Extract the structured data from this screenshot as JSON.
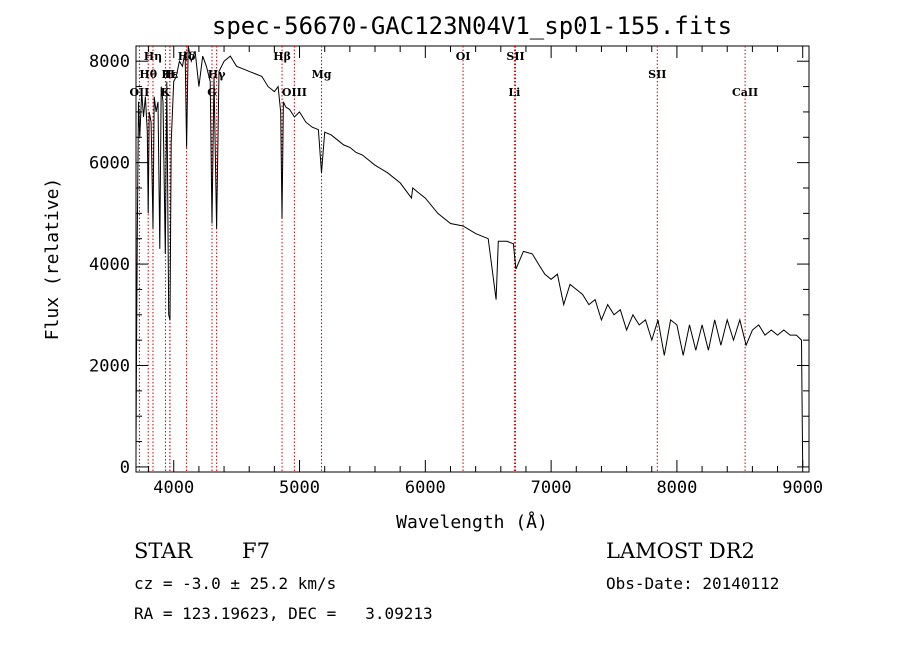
{
  "chart_data": {
    "type": "line",
    "title": "spec-56670-GAC123N04V1_sp01-155.fits",
    "xlabel": "Wavelength (Å)",
    "ylabel": "Flux (relative)",
    "xlim": [
      3700,
      9050
    ],
    "ylim": [
      -100,
      8300
    ],
    "x_ticks": [
      4000,
      5000,
      6000,
      7000,
      8000,
      9000
    ],
    "y_ticks": [
      0,
      2000,
      4000,
      6000,
      8000
    ],
    "grid": false,
    "line_color": "#000000",
    "marker_color": "#cc0000",
    "lines": [
      {
        "label": "Hη",
        "wavelength": 3835,
        "row": 0
      },
      {
        "label": "Hθ",
        "wavelength": 3797,
        "row": 1
      },
      {
        "label": "OII",
        "wavelength": 3727,
        "row": 2
      },
      {
        "label": "K",
        "wavelength": 3934,
        "row": 2
      },
      {
        "label": "H",
        "wavelength": 3969,
        "row": 1
      },
      {
        "label": "Hε",
        "wavelength": 3970,
        "row": 1
      },
      {
        "label": "Hδ",
        "wavelength": 4102,
        "row": 0
      },
      {
        "label": "Hγ",
        "wavelength": 4341,
        "row": 1
      },
      {
        "label": "G",
        "wavelength": 4304,
        "row": 2
      },
      {
        "label": "Hβ",
        "wavelength": 4861,
        "row": 0
      },
      {
        "label": "OIII",
        "wavelength": 4959,
        "row": 2
      },
      {
        "label": "Mg",
        "wavelength": 5175,
        "row": 1
      },
      {
        "label": "OI",
        "wavelength": 6300,
        "row": 0
      },
      {
        "label": "SII",
        "wavelength": 6717,
        "row": 0
      },
      {
        "label": "Li",
        "wavelength": 6708,
        "row": 2
      },
      {
        "label": "SII",
        "wavelength": 7844,
        "row": 1
      },
      {
        "label": "CaII",
        "wavelength": 8542,
        "row": 2
      }
    ],
    "series": [
      {
        "x": [
          3700,
          3705,
          3710,
          3720,
          3730,
          3745,
          3760,
          3775,
          3790,
          3797,
          3805,
          3820,
          3835,
          3845,
          3860,
          3875,
          3889,
          3900,
          3915,
          3933,
          3945,
          3960,
          3970,
          3980,
          4000,
          4020,
          4045,
          4070,
          4090,
          4102,
          4115,
          4140,
          4170,
          4200,
          4230,
          4260,
          4290,
          4304,
          4320,
          4341,
          4360,
          4400,
          4450,
          4500,
          4550,
          4600,
          4650,
          4700,
          4750,
          4800,
          4830,
          4850,
          4861,
          4872,
          4890,
          4920,
          4960,
          5000,
          5050,
          5100,
          5150,
          5175,
          5200,
          5250,
          5300,
          5350,
          5400,
          5450,
          5500,
          5600,
          5700,
          5800,
          5890,
          5900,
          5950,
          6000,
          6100,
          6200,
          6300,
          6400,
          6500,
          6563,
          6580,
          6650,
          6700,
          6720,
          6780,
          6850,
          6900,
          6950,
          7000,
          7050,
          7100,
          7150,
          7200,
          7250,
          7300,
          7350,
          7400,
          7450,
          7500,
          7550,
          7600,
          7650,
          7700,
          7750,
          7800,
          7850,
          7900,
          7950,
          8000,
          8050,
          8100,
          8150,
          8200,
          8250,
          8300,
          8350,
          8400,
          8450,
          8500,
          8550,
          8600,
          8650,
          8700,
          8750,
          8800,
          8850,
          8900,
          8950,
          8990,
          8995,
          9000
        ],
        "y": [
          300,
          2500,
          4600,
          7200,
          6500,
          7400,
          6900,
          7300,
          6600,
          5000,
          7000,
          6800,
          4700,
          7300,
          7000,
          7200,
          4300,
          7500,
          7200,
          4200,
          7600,
          3000,
          2900,
          6400,
          7600,
          7700,
          8000,
          7900,
          8200,
          6300,
          8300,
          8000,
          8200,
          7500,
          8100,
          7900,
          7600,
          4800,
          7700,
          4700,
          7800,
          8000,
          8100,
          7900,
          7850,
          7800,
          7750,
          7700,
          7500,
          7400,
          7500,
          7000,
          4900,
          7200,
          7100,
          7050,
          6900,
          7000,
          6800,
          6700,
          6650,
          5800,
          6600,
          6550,
          6450,
          6350,
          6300,
          6200,
          6150,
          5950,
          5800,
          5600,
          5300,
          5500,
          5400,
          5300,
          5000,
          4800,
          4750,
          4600,
          4500,
          3300,
          4450,
          4450,
          4400,
          3900,
          4250,
          4200,
          4000,
          3800,
          3700,
          3800,
          3200,
          3600,
          3500,
          3400,
          3200,
          3300,
          2900,
          3200,
          3000,
          3100,
          2700,
          3000,
          2800,
          2900,
          2500,
          2900,
          2200,
          2900,
          2800,
          2200,
          2800,
          2300,
          2800,
          2300,
          2900,
          2400,
          2900,
          2500,
          2900,
          2400,
          2700,
          2800,
          2600,
          2700,
          2600,
          2700,
          2600,
          2600,
          2500,
          1200,
          0
        ]
      }
    ]
  },
  "info": {
    "object_class": "STAR",
    "subclass": "F7",
    "redshift": "cz = -3.0 ± 25.2 km/s",
    "coords": "RA = 123.19623, DEC =   3.09213",
    "survey": "LAMOST DR2",
    "obs_date": "Obs-Date: 20140112"
  }
}
